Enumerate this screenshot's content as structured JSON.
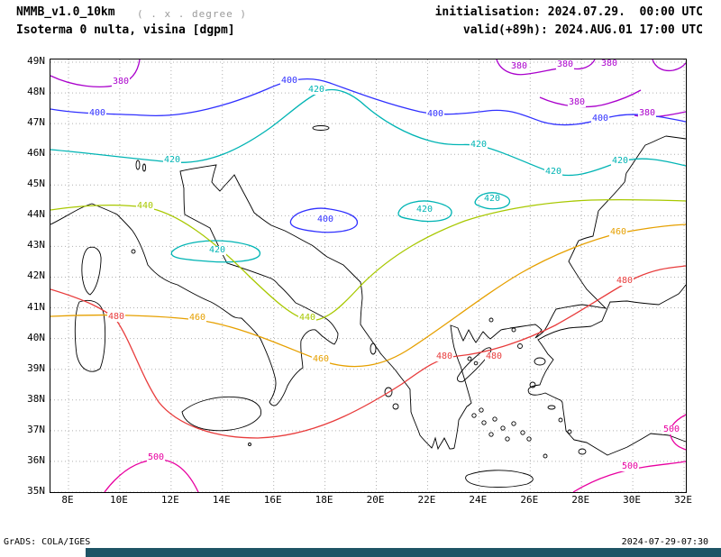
{
  "header": {
    "model_title": "NMMB_v1.0_10km",
    "grid_note": "( . x . degree )",
    "product_title": "Isoterma 0 nulta, visina [dgpm]",
    "init_line": "initialisation: 2024.07.29.  00:00 UTC",
    "valid_line": "valid(+89h): 2024.AUG.01 17:00 UTC"
  },
  "map": {
    "x_ticks": [
      "8E",
      "10E",
      "12E",
      "14E",
      "16E",
      "18E",
      "20E",
      "22E",
      "24E",
      "26E",
      "28E",
      "30E",
      "32E"
    ],
    "y_ticks": [
      "49N",
      "48N",
      "47N",
      "46N",
      "45N",
      "44N",
      "43N",
      "42N",
      "41N",
      "40N",
      "39N",
      "38N",
      "37N",
      "36N",
      "35N"
    ]
  },
  "footer": {
    "credit": "GrADS: COLA/IGES",
    "generated": "2024-07-29-07:30"
  },
  "colors": {
    "background": "#ffffff",
    "frame": "#000000",
    "coastline": "#000000",
    "grid": "#b0b0b0",
    "bottom_bar": "#1e5465"
  },
  "chart_data": {
    "type": "contour-map",
    "title": "Isoterma 0 nulta, visina [dgpm]",
    "units": "dgpm",
    "model": "NMMB_v1.0_10km",
    "initialisation": "2024.07.29. 00:00 UTC",
    "valid": "(+89h) 2024.AUG.01 17:00 UTC",
    "lon_range": [
      "8E",
      "32E"
    ],
    "lat_range": [
      "35N",
      "49N"
    ],
    "contour_interval": 20,
    "levels": [
      380,
      400,
      420,
      440,
      460,
      480,
      500
    ],
    "level_colors": {
      "380": "#aa00cc",
      "400": "#3030ff",
      "420": "#00b4b4",
      "440": "#a8c800",
      "460": "#e6a000",
      "480": "#e83c3c",
      "500": "#e800a0"
    },
    "labels": [
      {
        "level": 380,
        "x": 78,
        "y": 25
      },
      {
        "level": 380,
        "x": 520,
        "y": 8
      },
      {
        "level": 380,
        "x": 571,
        "y": 6
      },
      {
        "level": 380,
        "x": 620,
        "y": 5
      },
      {
        "level": 380,
        "x": 584,
        "y": 48
      },
      {
        "level": 380,
        "x": 662,
        "y": 60
      },
      {
        "level": 400,
        "x": 52,
        "y": 60
      },
      {
        "level": 400,
        "x": 265,
        "y": 24
      },
      {
        "level": 400,
        "x": 427,
        "y": 61
      },
      {
        "level": 400,
        "x": 610,
        "y": 66
      },
      {
        "level": 400,
        "x": 305,
        "y": 178
      },
      {
        "level": 420,
        "x": 135,
        "y": 112
      },
      {
        "level": 420,
        "x": 295,
        "y": 34
      },
      {
        "level": 420,
        "x": 475,
        "y": 95
      },
      {
        "level": 420,
        "x": 558,
        "y": 125
      },
      {
        "level": 420,
        "x": 632,
        "y": 113
      },
      {
        "level": 420,
        "x": 185,
        "y": 212
      },
      {
        "level": 420,
        "x": 415,
        "y": 167
      },
      {
        "level": 420,
        "x": 490,
        "y": 155
      },
      {
        "level": 440,
        "x": 105,
        "y": 163
      },
      {
        "level": 440,
        "x": 285,
        "y": 287
      },
      {
        "level": 460,
        "x": 163,
        "y": 287
      },
      {
        "level": 460,
        "x": 300,
        "y": 333
      },
      {
        "level": 460,
        "x": 630,
        "y": 192
      },
      {
        "level": 480,
        "x": 73,
        "y": 286
      },
      {
        "level": 480,
        "x": 437,
        "y": 330
      },
      {
        "level": 480,
        "x": 492,
        "y": 330
      },
      {
        "level": 480,
        "x": 637,
        "y": 246
      },
      {
        "level": 500,
        "x": 117,
        "y": 442
      },
      {
        "level": 500,
        "x": 643,
        "y": 452
      },
      {
        "level": 500,
        "x": 689,
        "y": 411
      }
    ]
  }
}
